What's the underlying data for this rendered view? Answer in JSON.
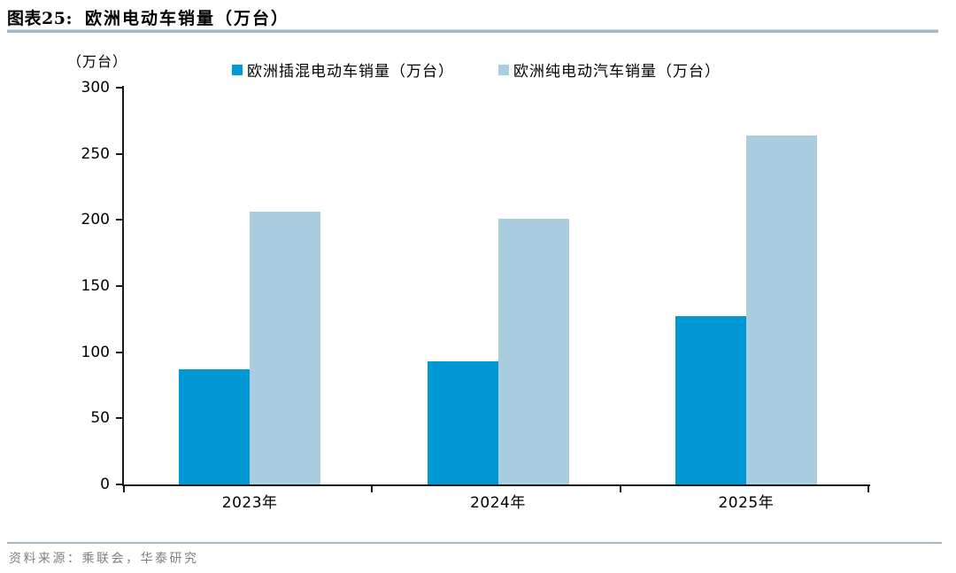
{
  "figure": {
    "label": "图表25:",
    "title": "欧洲电动车销量（万台）",
    "unit_label": "（万台）",
    "source": "资料来源：乘联会，华泰研究"
  },
  "colors": {
    "phev_bar": "#0099D5",
    "bev_bar": "#AACEDF",
    "rule": "#A4B8CC",
    "axis": "#1A1A1A",
    "source_text": "#7F7F7F"
  },
  "chart_data": {
    "type": "bar",
    "title": "欧洲电动车销量（万台）",
    "categories": [
      "2023年",
      "2024年",
      "2025年"
    ],
    "series": [
      {
        "name": "欧洲插混电动车销量（万台）",
        "color": "#0099D5",
        "values": [
          87,
          93,
          127
        ]
      },
      {
        "name": "欧洲纯电动汽车销量（万台）",
        "color": "#AACEDF",
        "values": [
          206,
          201,
          264
        ]
      }
    ],
    "xlabel": "",
    "ylabel": "（万台）",
    "ylim": [
      0,
      300
    ],
    "y_ticks": [
      0,
      50,
      100,
      150,
      200,
      250,
      300
    ],
    "grid": false,
    "legend_position": "top-center"
  }
}
